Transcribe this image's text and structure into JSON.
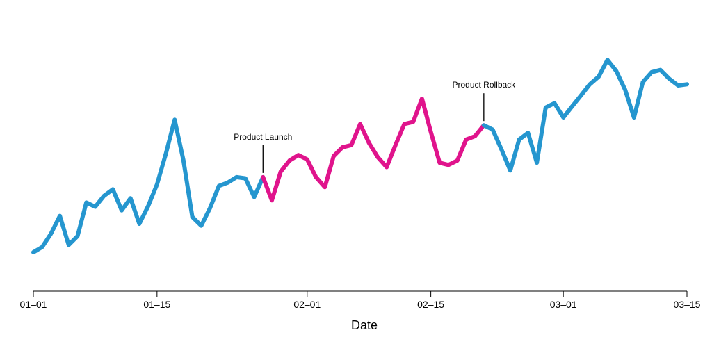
{
  "chart_data": {
    "type": "line",
    "title": "",
    "xlabel": "Date",
    "ylabel": "",
    "x_tick_labels": [
      "01–01",
      "01–15",
      "02–01",
      "02–15",
      "03–01",
      "03–15"
    ],
    "x_tick_dates": [
      "2024-01-01",
      "2024-01-15",
      "2024-02-01",
      "2024-02-15",
      "2024-03-01",
      "2024-03-15"
    ],
    "xlim": [
      "2024-01-01",
      "2024-03-15"
    ],
    "ylim": [
      0,
      100
    ],
    "y_axis_visible": false,
    "grid": false,
    "colors": {
      "normal": "#2596cf",
      "highlight": "#e0148c"
    },
    "series": [
      {
        "x": [
          "2024-01-01",
          "2024-01-02",
          "2024-01-03",
          "2024-01-04",
          "2024-01-05",
          "2024-01-06",
          "2024-01-07",
          "2024-01-08",
          "2024-01-09",
          "2024-01-10",
          "2024-01-11",
          "2024-01-12",
          "2024-01-13",
          "2024-01-14",
          "2024-01-15",
          "2024-01-16",
          "2024-01-17",
          "2024-01-18",
          "2024-01-19",
          "2024-01-20",
          "2024-01-21",
          "2024-01-22",
          "2024-01-23",
          "2024-01-24",
          "2024-01-25",
          "2024-01-26",
          "2024-01-27",
          "2024-01-28",
          "2024-01-29",
          "2024-01-30",
          "2024-01-31",
          "2024-02-01",
          "2024-02-02",
          "2024-02-03",
          "2024-02-04",
          "2024-02-05",
          "2024-02-06",
          "2024-02-07",
          "2024-02-08",
          "2024-02-09",
          "2024-02-10",
          "2024-02-11",
          "2024-02-12",
          "2024-02-13",
          "2024-02-14",
          "2024-02-15",
          "2024-02-16",
          "2024-02-17",
          "2024-02-18",
          "2024-02-19",
          "2024-02-20",
          "2024-02-21",
          "2024-02-22",
          "2024-02-23",
          "2024-02-24",
          "2024-02-25",
          "2024-02-26",
          "2024-02-27",
          "2024-02-28",
          "2024-02-29",
          "2024-03-01",
          "2024-03-02",
          "2024-03-03",
          "2024-03-04",
          "2024-03-05",
          "2024-03-06",
          "2024-03-07",
          "2024-03-08",
          "2024-03-09",
          "2024-03-10",
          "2024-03-11",
          "2024-03-12",
          "2024-03-13",
          "2024-03-14",
          "2024-03-15"
        ],
        "y": [
          0,
          2.7,
          9.5,
          18.5,
          3.7,
          8.2,
          25.3,
          23.1,
          28.7,
          32.0,
          21.3,
          27.5,
          14.5,
          23.5,
          34.5,
          50.0,
          67.4,
          46.6,
          18.0,
          13.5,
          22.5,
          33.7,
          35.4,
          38.2,
          37.6,
          28.1,
          38.2,
          26.4,
          41.0,
          46.6,
          49.4,
          47.2,
          38.2,
          33.1,
          48.9,
          53.4,
          54.5,
          65.2,
          55.6,
          48.3,
          43.3,
          54.5,
          65.2,
          66.3,
          78.1,
          61.2,
          45.5,
          44.4,
          46.6,
          57.3,
          59.0,
          64.6,
          62.4,
          52.3,
          41.6,
          57.3,
          60.7,
          45.5,
          73.6,
          75.8,
          68.5,
          74.2,
          79.8,
          85.4,
          89.3,
          97.8,
          92.1,
          82.6,
          68.5,
          86.5,
          91.6,
          92.7,
          88.2,
          84.8,
          85.4
        ]
      }
    ],
    "highlight_range": [
      "2024-01-27",
      "2024-02-21"
    ],
    "annotations": [
      {
        "text": "Product Launch",
        "x": "2024-01-27"
      },
      {
        "text": "Product Rollback",
        "x": "2024-02-21"
      }
    ]
  }
}
